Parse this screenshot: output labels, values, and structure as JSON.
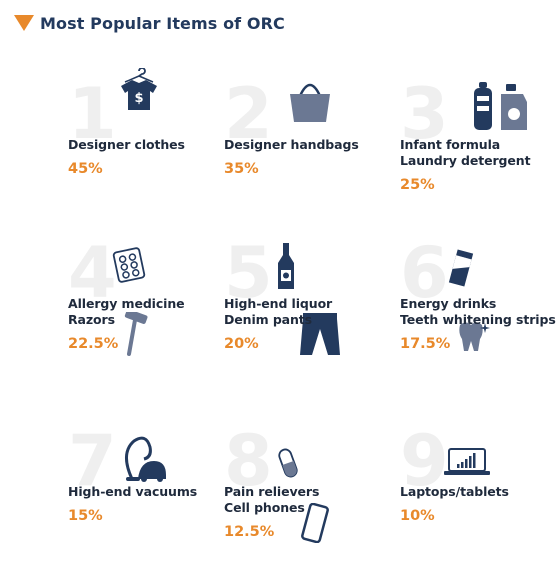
{
  "header": {
    "title": "Most Popular Items of ORC"
  },
  "colors": {
    "accent": "#e8892b",
    "navy": "#233a5e",
    "rank_gray": "#efefef"
  },
  "chart_data": {
    "type": "table",
    "title": "Most Popular Items of ORC",
    "columns": [
      "rank",
      "items",
      "percent"
    ],
    "rows": [
      {
        "rank": "1",
        "items": [
          "Designer clothes"
        ],
        "value": 45,
        "label": "45%"
      },
      {
        "rank": "2",
        "items": [
          "Designer handbags"
        ],
        "value": 35,
        "label": "35%"
      },
      {
        "rank": "3",
        "items": [
          "Infant formula",
          "Laundry detergent"
        ],
        "value": 25,
        "label": "25%"
      },
      {
        "rank": "4",
        "items": [
          "Allergy medicine",
          "Razors"
        ],
        "value": 22.5,
        "label": "22.5%"
      },
      {
        "rank": "5",
        "items": [
          "High-end liquor",
          "Denim pants"
        ],
        "value": 20,
        "label": "20%"
      },
      {
        "rank": "6",
        "items": [
          "Energy drinks",
          "Teeth whitening strips"
        ],
        "value": 17.5,
        "label": "17.5%"
      },
      {
        "rank": "7",
        "items": [
          "High-end vacuums"
        ],
        "value": 15,
        "label": "15%"
      },
      {
        "rank": "8",
        "items": [
          "Pain relievers",
          "Cell phones"
        ],
        "value": 12.5,
        "label": "12.5%"
      },
      {
        "rank": "9",
        "items": [
          "Laptops/tablets"
        ],
        "value": 10,
        "label": "10%"
      }
    ],
    "icons": [
      [
        "shirt-dollar-icon"
      ],
      [
        "handbag-icon"
      ],
      [
        "bottles-icon"
      ],
      [
        "pill-blister-icon",
        "razor-icon"
      ],
      [
        "liquor-bottle-icon",
        "jeans-icon"
      ],
      [
        "energy-can-icon",
        "tooth-icon"
      ],
      [
        "vacuum-icon"
      ],
      [
        "capsule-icon",
        "cell-phone-icon"
      ],
      [
        "laptop-icon"
      ]
    ]
  }
}
